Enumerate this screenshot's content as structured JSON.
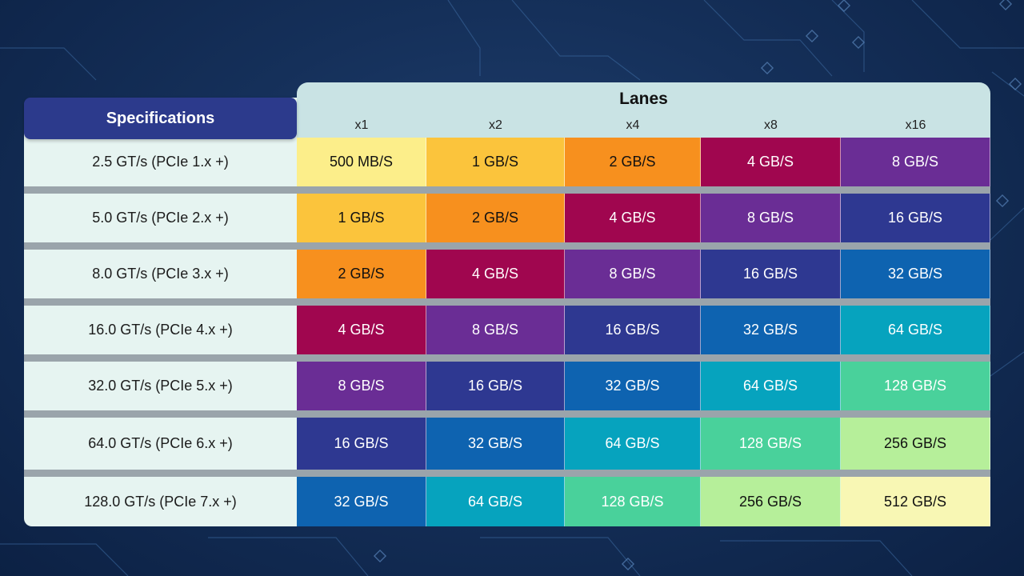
{
  "table": {
    "spec_header": "Specifications",
    "lanes_title": "Lanes",
    "lanes": [
      "x1",
      "x2",
      "x4",
      "x8",
      "x16"
    ],
    "rows": [
      {
        "spec": "2.5 GT/s (PCIe 1.x +)",
        "values": [
          "500 MB/S",
          "1 GB/S",
          "2 GB/S",
          "4 GB/S",
          "8 GB/S"
        ]
      },
      {
        "spec": "5.0 GT/s (PCIe 2.x +)",
        "values": [
          "1 GB/S",
          "2 GB/S",
          "4 GB/S",
          "8 GB/S",
          "16 GB/S"
        ]
      },
      {
        "spec": "8.0 GT/s (PCIe 3.x +)",
        "values": [
          "2 GB/S",
          "4 GB/S",
          "8 GB/S",
          "16 GB/S",
          "32 GB/S"
        ]
      },
      {
        "spec": "16.0 GT/s (PCIe 4.x +)",
        "values": [
          "4 GB/S",
          "8 GB/S",
          "16 GB/S",
          "32 GB/S",
          "64 GB/S"
        ]
      },
      {
        "spec": "32.0 GT/s (PCIe 5.x +)",
        "values": [
          "8 GB/S",
          "16 GB/S",
          "32 GB/S",
          "64 GB/S",
          "128 GB/S"
        ]
      },
      {
        "spec": "64.0 GT/s (PCIe 6.x +)",
        "values": [
          "16 GB/S",
          "32 GB/S",
          "64 GB/S",
          "128 GB/S",
          "256 GB/S"
        ]
      },
      {
        "spec": "128.0 GT/s (PCIe 7.x +)",
        "values": [
          "32 GB/S",
          "64 GB/S",
          "128 GB/S",
          "256 GB/S",
          "512 GB/S"
        ]
      }
    ]
  },
  "colors": {
    "500 MB/S": {
      "bg": "#fcee8a",
      "fg": "#111111"
    },
    "1 GB/S": {
      "bg": "#fbc43c",
      "fg": "#111111"
    },
    "2 GB/S": {
      "bg": "#f7901e",
      "fg": "#111111"
    },
    "4 GB/S": {
      "bg": "#a0064f",
      "fg": "#ffffff"
    },
    "8 GB/S": {
      "bg": "#6a2d95",
      "fg": "#ffffff"
    },
    "16 GB/S": {
      "bg": "#2e3891",
      "fg": "#ffffff"
    },
    "32 GB/S": {
      "bg": "#0e63b0",
      "fg": "#ffffff"
    },
    "64 GB/S": {
      "bg": "#06a3be",
      "fg": "#ffffff"
    },
    "128 GB/S": {
      "bg": "#49d19b",
      "fg": "#ffffff"
    },
    "256 GB/S": {
      "bg": "#b6ef9a",
      "fg": "#111111"
    },
    "512 GB/S": {
      "bg": "#f8f7b4",
      "fg": "#111111"
    }
  }
}
